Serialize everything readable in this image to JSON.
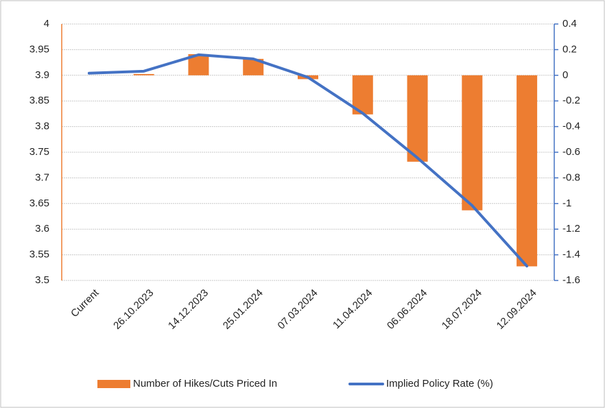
{
  "chart_data": {
    "type": "bar-line",
    "categories": [
      "Current",
      "26.10.2023",
      "14.12.2023",
      "25.01.2024",
      "07.03.2024",
      "11.04.2024",
      "06.06.2024",
      "18.07.2024",
      "12.09.2024"
    ],
    "series": [
      {
        "name": "Number of Hikes/Cuts Priced In",
        "type": "bar",
        "axis": "y2",
        "color": "#ed7d31",
        "values": [
          0,
          0.01,
          0.165,
          0.128,
          -0.03,
          -0.305,
          -0.674,
          -1.053,
          -1.49
        ]
      },
      {
        "name": "Implied Policy Rate (%)",
        "type": "line",
        "axis": "y",
        "color": "#4472c4",
        "values": [
          3.904,
          3.908,
          3.94,
          3.932,
          3.896,
          3.826,
          3.739,
          3.646,
          3.528
        ]
      }
    ],
    "ylim": [
      3.5,
      4
    ],
    "yticks": [
      3.5,
      3.55,
      3.6,
      3.65,
      3.7,
      3.75,
      3.8,
      3.85,
      3.9,
      3.95,
      4
    ],
    "y2lim": [
      -1.6,
      0.4
    ],
    "y2ticks": [
      -1.6,
      -1.4,
      -1.2,
      -1,
      -0.8,
      -0.6,
      -0.4,
      -0.2,
      0,
      0.2,
      0.4
    ],
    "grid": true,
    "legend": "bottom"
  }
}
